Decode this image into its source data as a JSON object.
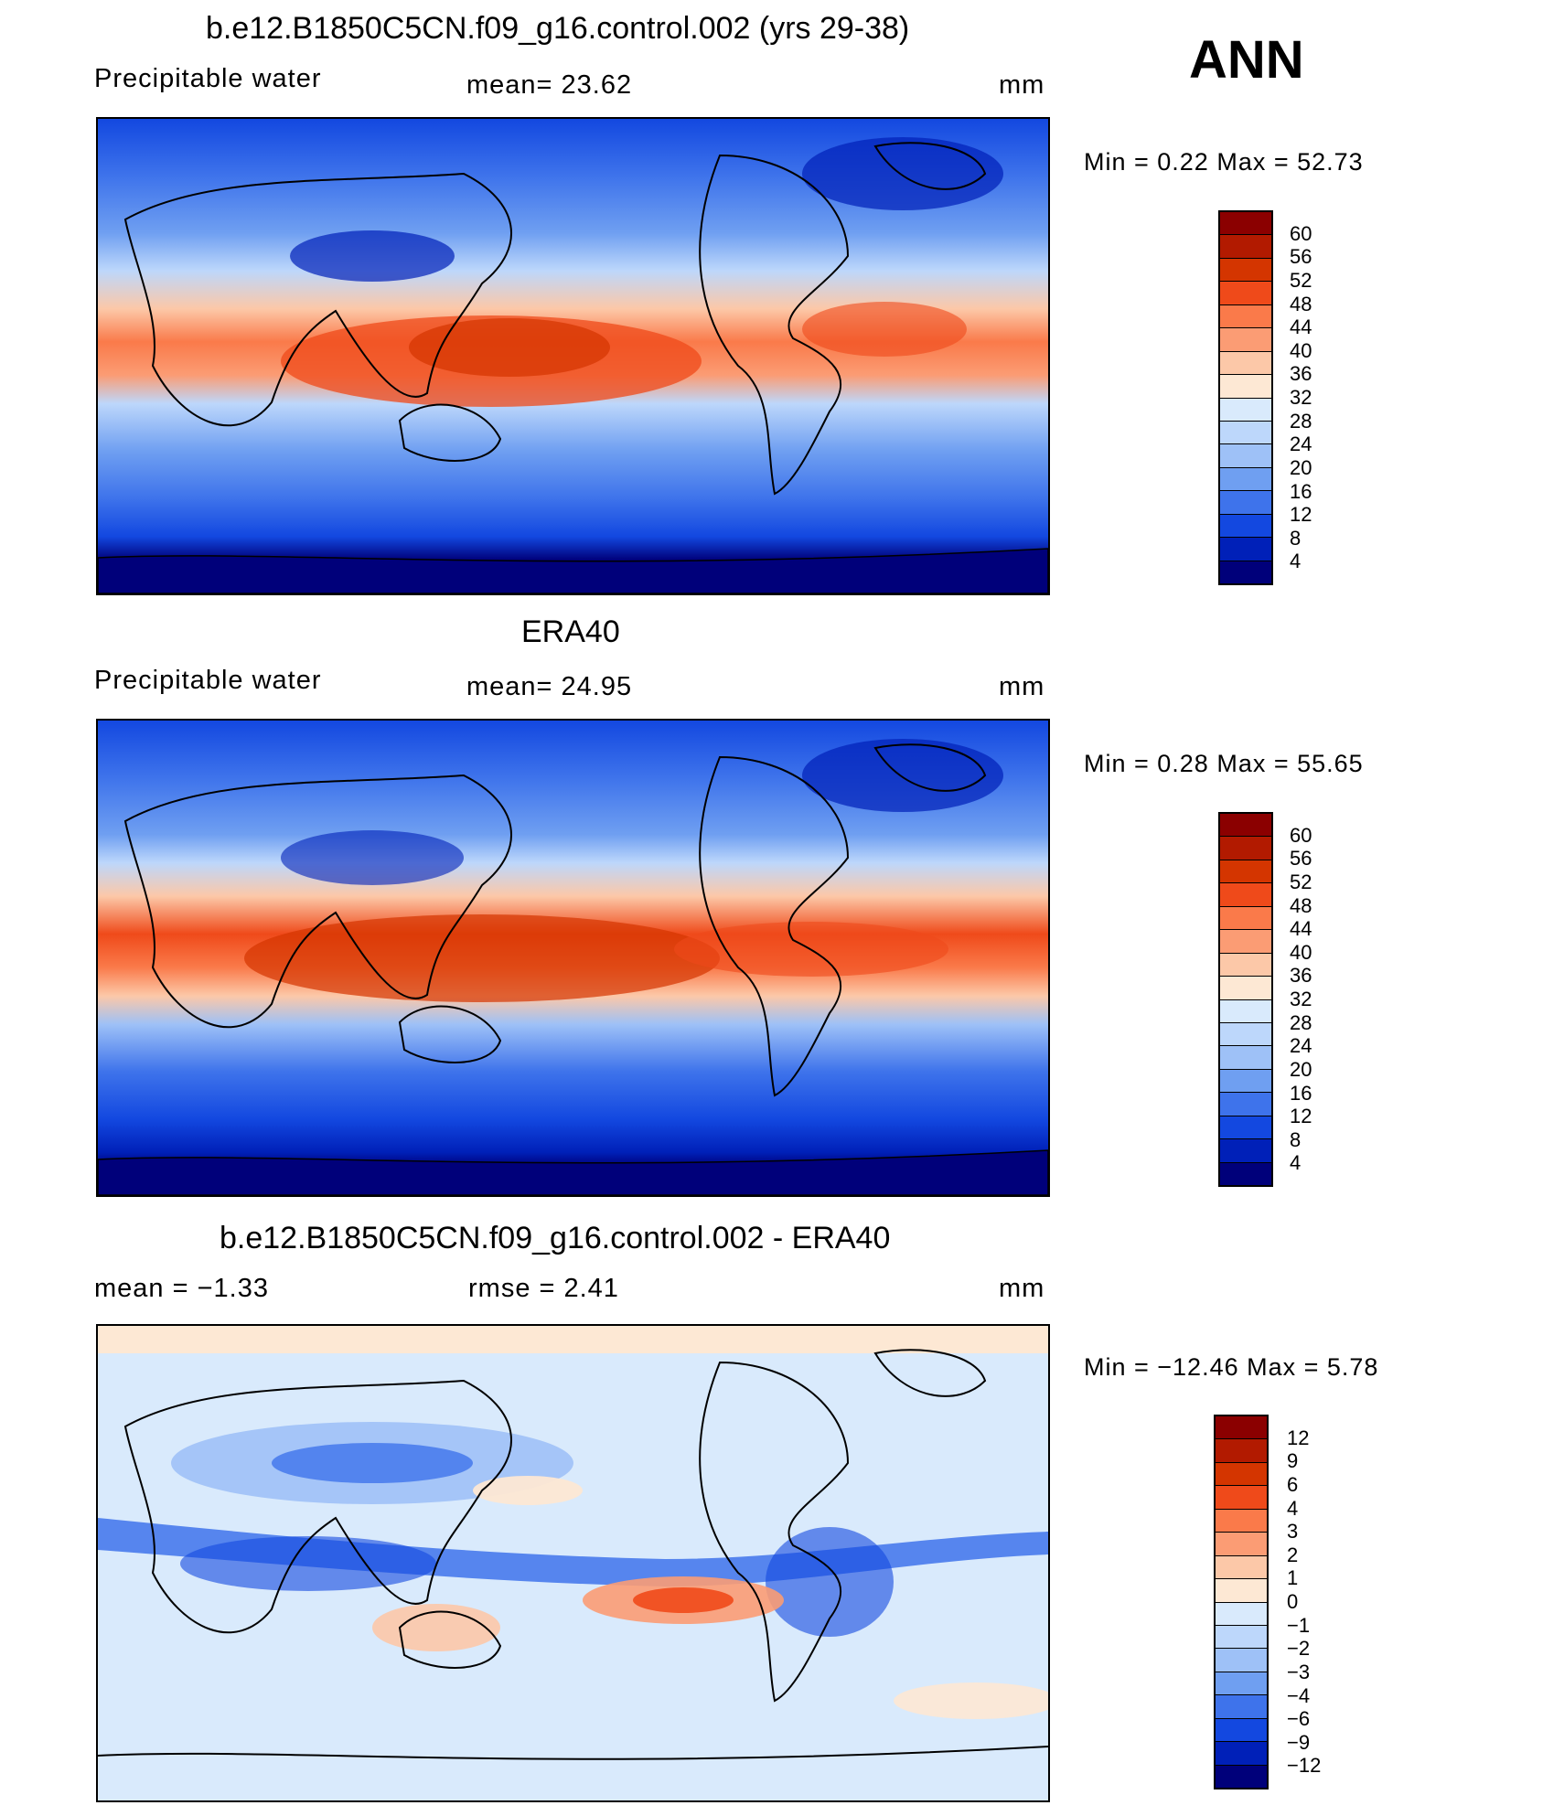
{
  "season": "ANN",
  "panels": [
    {
      "title": "b.e12.B1850C5CN.f09_g16.control.002 (yrs 29-38)",
      "left_label": "Precipitable  water",
      "center_label": "mean=   23.62",
      "units": "mm",
      "minmax": "Min  =     0.22  Max  =    52.73",
      "colorbar": {
        "levels": [
          "60",
          "56",
          "52",
          "48",
          "44",
          "40",
          "36",
          "32",
          "28",
          "24",
          "20",
          "16",
          "12",
          "8",
          "4"
        ],
        "colors": [
          "#8b0000",
          "#b21a00",
          "#d43500",
          "#ef4a1a",
          "#fa7a4a",
          "#fb9c74",
          "#fcc8a8",
          "#fde8d4",
          "#d9eafc",
          "#bdd7fb",
          "#9ec1f7",
          "#6f9ff1",
          "#3e73eb",
          "#1348e0",
          "#0020b8",
          "#00007a"
        ]
      }
    },
    {
      "title": "ERA40",
      "left_label": "Precipitable  water",
      "center_label": "mean=   24.95",
      "units": "mm",
      "minmax": "Min  =     0.28  Max  =    55.65",
      "colorbar": {
        "levels": [
          "60",
          "56",
          "52",
          "48",
          "44",
          "40",
          "36",
          "32",
          "28",
          "24",
          "20",
          "16",
          "12",
          "8",
          "4"
        ],
        "colors": [
          "#8b0000",
          "#b21a00",
          "#d43500",
          "#ef4a1a",
          "#fa7a4a",
          "#fb9c74",
          "#fcc8a8",
          "#fde8d4",
          "#d9eafc",
          "#bdd7fb",
          "#9ec1f7",
          "#6f9ff1",
          "#3e73eb",
          "#1348e0",
          "#0020b8",
          "#00007a"
        ]
      }
    },
    {
      "title": "b.e12.B1850C5CN.f09_g16.control.002 - ERA40",
      "left_label": "mean  =    −1.33",
      "center_label": "rmse  =     2.41",
      "units": "mm",
      "minmax": "Min  =  −12.46  Max  =     5.78",
      "colorbar": {
        "levels": [
          "12",
          "9",
          "6",
          "4",
          "3",
          "2",
          "1",
          "0",
          "−1",
          "−2",
          "−3",
          "−4",
          "−6",
          "−9",
          "−12"
        ],
        "colors": [
          "#8b0000",
          "#b21a00",
          "#d43500",
          "#ef4a1a",
          "#fa7a4a",
          "#fb9c74",
          "#fcc8a8",
          "#fde8d4",
          "#d9eafc",
          "#bdd7fb",
          "#9ec1f7",
          "#6f9ff1",
          "#3e73eb",
          "#1348e0",
          "#0020b8",
          "#00007a"
        ]
      }
    }
  ]
}
